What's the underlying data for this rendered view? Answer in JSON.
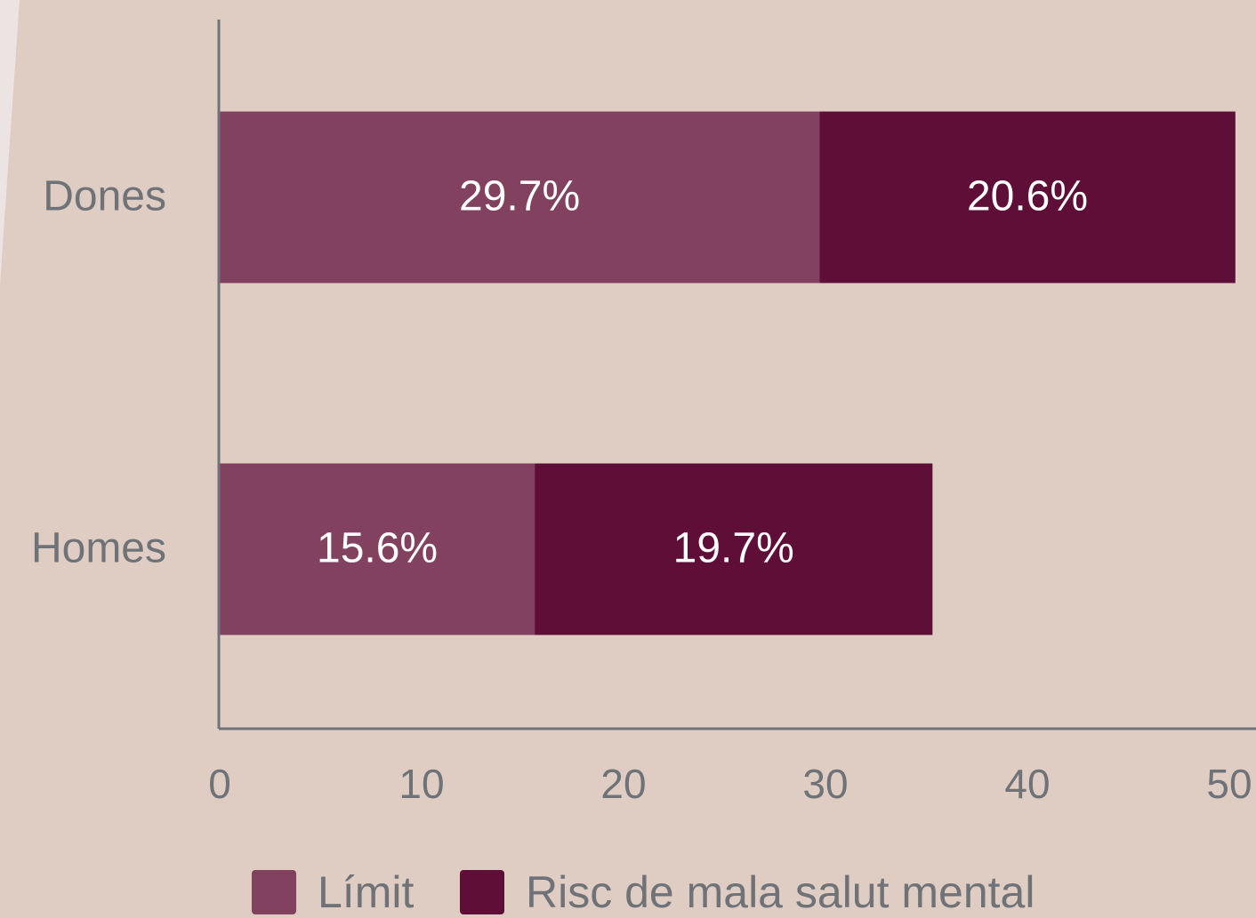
{
  "chart_data": {
    "type": "stacked-bar-horizontal",
    "categories": [
      "Dones",
      "Homes"
    ],
    "series": [
      {
        "name": "Límit",
        "color": "#834160",
        "values": [
          29.7,
          15.6
        ],
        "value_labels": [
          "29.7%",
          "15.6%"
        ]
      },
      {
        "name": "Risc de mala salut mental",
        "color": "#5e0e37",
        "values": [
          20.6,
          19.7
        ],
        "value_labels": [
          "20.6%",
          "19.7%"
        ]
      }
    ],
    "xlim": [
      0,
      50
    ],
    "xticks": [
      0,
      10,
      20,
      30,
      40,
      50
    ],
    "legend": "bottom"
  }
}
